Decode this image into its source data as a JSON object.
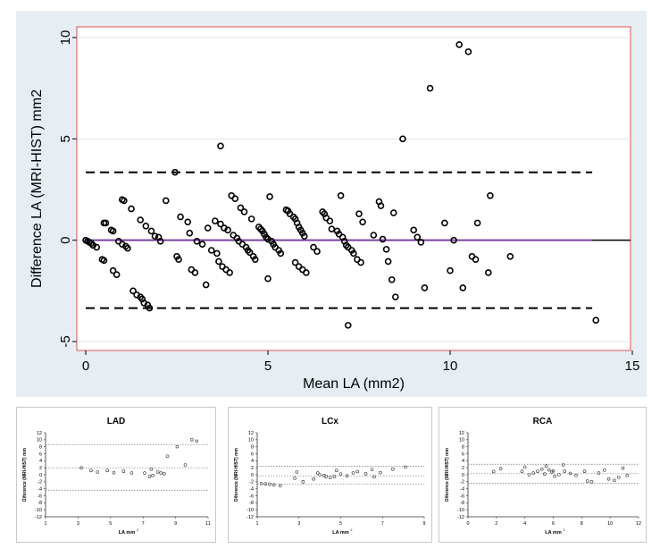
{
  "chart_data": [
    {
      "type": "scatter",
      "title": "",
      "xlabel": "Mean LA (mm2)",
      "ylabel": "Difference LA (MRI-HIST) mm2",
      "xlim": [
        0,
        15
      ],
      "ylim": [
        -5,
        10
      ],
      "xticks": [
        0,
        5,
        10,
        15
      ],
      "yticks": [
        -5,
        0,
        5,
        10
      ],
      "grid": true,
      "reference_lines": {
        "mean": 0,
        "upper_limit": 3.35,
        "lower_limit": -3.35
      },
      "colors": {
        "mean_line": "#7b3fa0",
        "limit_line": "#000000",
        "marker": "#000000",
        "frame": "#d9534f",
        "background": "#e7eef3"
      },
      "points": [
        [
          0,
          0
        ],
        [
          0.05,
          -0.05
        ],
        [
          0.1,
          -0.1
        ],
        [
          0.15,
          -0.15
        ],
        [
          0.2,
          -0.25
        ],
        [
          0.3,
          -0.35
        ],
        [
          0.5,
          0.85
        ],
        [
          0.55,
          0.85
        ],
        [
          0.45,
          -0.95
        ],
        [
          0.5,
          -1.0
        ],
        [
          0.7,
          0.5
        ],
        [
          0.75,
          0.45
        ],
        [
          0.75,
          -1.5
        ],
        [
          0.85,
          -1.7
        ],
        [
          0.9,
          -0.05
        ],
        [
          1.0,
          -0.2
        ],
        [
          1.0,
          2.0
        ],
        [
          1.05,
          1.95
        ],
        [
          1.1,
          -0.3
        ],
        [
          1.15,
          -0.4
        ],
        [
          1.25,
          1.55
        ],
        [
          1.3,
          -2.5
        ],
        [
          1.4,
          -2.7
        ],
        [
          1.5,
          -2.8
        ],
        [
          1.55,
          -2.9
        ],
        [
          1.6,
          -3.1
        ],
        [
          1.7,
          -3.2
        ],
        [
          1.75,
          -3.35
        ],
        [
          1.5,
          1.0
        ],
        [
          1.65,
          0.7
        ],
        [
          1.8,
          0.45
        ],
        [
          1.9,
          0.2
        ],
        [
          2.0,
          0.15
        ],
        [
          2.05,
          -0.05
        ],
        [
          2.2,
          1.95
        ],
        [
          2.45,
          3.35
        ],
        [
          2.5,
          -0.8
        ],
        [
          2.55,
          -0.95
        ],
        [
          2.6,
          1.15
        ],
        [
          2.8,
          0.9
        ],
        [
          2.85,
          0.35
        ],
        [
          2.9,
          -1.45
        ],
        [
          3.0,
          -1.6
        ],
        [
          3.05,
          -0.05
        ],
        [
          3.2,
          -0.2
        ],
        [
          3.3,
          -2.2
        ],
        [
          3.35,
          0.6
        ],
        [
          3.45,
          -0.5
        ],
        [
          3.55,
          0.95
        ],
        [
          3.6,
          -0.65
        ],
        [
          3.65,
          -1.05
        ],
        [
          3.7,
          0.8
        ],
        [
          3.75,
          -1.3
        ],
        [
          3.8,
          0.6
        ],
        [
          3.85,
          -1.45
        ],
        [
          3.9,
          0.5
        ],
        [
          3.95,
          -1.6
        ],
        [
          3.7,
          4.65
        ],
        [
          4.0,
          2.2
        ],
        [
          4.05,
          0.25
        ],
        [
          4.1,
          2.05
        ],
        [
          4.15,
          0.1
        ],
        [
          4.2,
          -0.05
        ],
        [
          4.25,
          1.6
        ],
        [
          4.3,
          -0.2
        ],
        [
          4.35,
          1.4
        ],
        [
          4.4,
          -0.35
        ],
        [
          4.45,
          -0.5
        ],
        [
          4.5,
          -0.6
        ],
        [
          4.55,
          1.05
        ],
        [
          4.6,
          -0.8
        ],
        [
          4.65,
          -0.95
        ],
        [
          4.75,
          0.65
        ],
        [
          4.8,
          0.55
        ],
        [
          4.85,
          0.45
        ],
        [
          4.9,
          0.3
        ],
        [
          4.95,
          0.15
        ],
        [
          5.0,
          0.05
        ],
        [
          5.05,
          2.15
        ],
        [
          5.1,
          -0.05
        ],
        [
          5.15,
          -0.2
        ],
        [
          5.2,
          -0.35
        ],
        [
          5.3,
          -0.5
        ],
        [
          5.35,
          -0.65
        ],
        [
          5.0,
          -1.9
        ],
        [
          5.5,
          1.5
        ],
        [
          5.55,
          1.45
        ],
        [
          5.6,
          1.3
        ],
        [
          5.7,
          1.15
        ],
        [
          5.75,
          1.05
        ],
        [
          5.8,
          0.85
        ],
        [
          5.85,
          0.65
        ],
        [
          5.9,
          0.5
        ],
        [
          5.95,
          0.35
        ],
        [
          6.0,
          0.2
        ],
        [
          5.75,
          -1.1
        ],
        [
          5.85,
          -1.3
        ],
        [
          5.95,
          -1.45
        ],
        [
          6.05,
          -1.6
        ],
        [
          6.25,
          -0.35
        ],
        [
          6.35,
          -0.55
        ],
        [
          6.5,
          1.4
        ],
        [
          6.55,
          1.3
        ],
        [
          6.6,
          1.1
        ],
        [
          6.7,
          0.95
        ],
        [
          6.75,
          0.55
        ],
        [
          6.9,
          0.45
        ],
        [
          6.95,
          0.3
        ],
        [
          7.0,
          2.2
        ],
        [
          7.05,
          0.15
        ],
        [
          7.1,
          -0.05
        ],
        [
          7.15,
          -0.25
        ],
        [
          7.2,
          -0.35
        ],
        [
          7.3,
          -0.5
        ],
        [
          7.35,
          -0.65
        ],
        [
          7.45,
          -0.95
        ],
        [
          7.55,
          -1.1
        ],
        [
          7.2,
          -4.2
        ],
        [
          7.5,
          1.3
        ],
        [
          7.6,
          0.9
        ],
        [
          7.9,
          0.25
        ],
        [
          8.05,
          1.9
        ],
        [
          8.1,
          1.7
        ],
        [
          8.15,
          0.05
        ],
        [
          8.25,
          -0.45
        ],
        [
          8.3,
          -1.05
        ],
        [
          8.4,
          -1.95
        ],
        [
          8.45,
          1.35
        ],
        [
          8.5,
          -2.8
        ],
        [
          8.7,
          5.0
        ],
        [
          9.0,
          0.5
        ],
        [
          9.1,
          0.15
        ],
        [
          9.2,
          -0.1
        ],
        [
          9.3,
          -2.35
        ],
        [
          9.45,
          7.5
        ],
        [
          9.85,
          0.85
        ],
        [
          10.0,
          -1.5
        ],
        [
          10.1,
          0.0
        ],
        [
          10.25,
          9.65
        ],
        [
          10.35,
          -2.35
        ],
        [
          10.5,
          9.3
        ],
        [
          10.6,
          -0.8
        ],
        [
          10.7,
          -0.95
        ],
        [
          10.75,
          0.85
        ],
        [
          11.1,
          2.2
        ],
        [
          11.05,
          -1.6
        ],
        [
          11.65,
          -0.8
        ],
        [
          14.0,
          -3.95
        ]
      ]
    },
    {
      "type": "scatter",
      "title": "LAD",
      "xlabel": "LA mm",
      "ylabel": "Diference (MRI-HIST) mm",
      "xlim": [
        1,
        11
      ],
      "ylim": [
        -12,
        12
      ],
      "xticks": [
        1,
        3,
        5,
        7,
        9,
        11
      ],
      "yticks": [
        -12,
        -10,
        -8,
        -6,
        -4,
        -2,
        0,
        2,
        4,
        6,
        8,
        10,
        12
      ],
      "reference_lines": {
        "mean": 2.0,
        "upper_limit": 8.6,
        "lower_limit": -4.4
      },
      "points": [
        [
          3.2,
          2.0
        ],
        [
          3.8,
          1.2
        ],
        [
          4.2,
          0.8
        ],
        [
          4.8,
          1.2
        ],
        [
          5.2,
          0.6
        ],
        [
          5.8,
          1.0
        ],
        [
          6.3,
          0.5
        ],
        [
          7.1,
          0.5
        ],
        [
          7.4,
          -0.5
        ],
        [
          7.5,
          1.6
        ],
        [
          7.6,
          -0.2
        ],
        [
          7.9,
          0.8
        ],
        [
          8.1,
          0.5
        ],
        [
          8.3,
          0.3
        ],
        [
          8.5,
          5.3
        ],
        [
          9.1,
          8.0
        ],
        [
          9.6,
          2.8
        ],
        [
          10.0,
          10.0
        ],
        [
          10.3,
          9.6
        ]
      ]
    },
    {
      "type": "scatter",
      "title": "LCx",
      "xlabel": "LA mm",
      "ylabel": "Diference (MRI-HIST) mm",
      "xlim": [
        1,
        9
      ],
      "ylim": [
        -12,
        12
      ],
      "xticks": [
        1,
        3,
        5,
        7,
        9
      ],
      "yticks": [
        -12,
        -10,
        -8,
        -6,
        -4,
        -2,
        0,
        2,
        4,
        6,
        8,
        10,
        12
      ],
      "reference_lines": {
        "mean": -0.3,
        "upper_limit": 2.4,
        "lower_limit": -2.7
      },
      "points": [
        [
          1.2,
          -2.5
        ],
        [
          1.4,
          -2.6
        ],
        [
          1.6,
          -2.7
        ],
        [
          1.8,
          -2.9
        ],
        [
          2.1,
          -3.1
        ],
        [
          2.8,
          -1.0
        ],
        [
          2.9,
          0.8
        ],
        [
          3.2,
          -2.0
        ],
        [
          3.7,
          -1.2
        ],
        [
          3.9,
          0.5
        ],
        [
          4.0,
          0.0
        ],
        [
          4.2,
          -0.2
        ],
        [
          4.3,
          -0.5
        ],
        [
          4.5,
          -0.8
        ],
        [
          4.7,
          -0.5
        ],
        [
          4.8,
          1.2
        ],
        [
          5.0,
          0.2
        ],
        [
          5.3,
          -0.3
        ],
        [
          5.6,
          0.5
        ],
        [
          5.8,
          0.9
        ],
        [
          6.2,
          0.3
        ],
        [
          6.5,
          1.5
        ],
        [
          6.6,
          -0.6
        ],
        [
          6.9,
          0.6
        ],
        [
          7.5,
          1.6
        ],
        [
          8.1,
          2.2
        ]
      ]
    },
    {
      "type": "scatter",
      "title": "RCA",
      "xlabel": "LA mm",
      "ylabel": "Diference (MRI-HIST) mm",
      "xlim": [
        0,
        12
      ],
      "ylim": [
        -12,
        12
      ],
      "xticks": [
        0,
        2,
        4,
        6,
        8,
        10,
        12
      ],
      "yticks": [
        -12,
        -10,
        -8,
        -6,
        -4,
        -2,
        0,
        2,
        4,
        6,
        8,
        10,
        12
      ],
      "reference_lines": {
        "mean": 0.3,
        "upper_limit": 3.0,
        "lower_limit": -2.4
      },
      "points": [
        [
          1.8,
          0.9
        ],
        [
          2.3,
          1.8
        ],
        [
          3.8,
          1.0
        ],
        [
          4.0,
          2.2
        ],
        [
          4.3,
          0.0
        ],
        [
          4.6,
          0.5
        ],
        [
          4.9,
          1.0
        ],
        [
          5.2,
          1.6
        ],
        [
          5.4,
          0.2
        ],
        [
          5.5,
          2.5
        ],
        [
          5.7,
          1.4
        ],
        [
          5.9,
          0.8
        ],
        [
          6.0,
          1.1
        ],
        [
          6.1,
          -0.4
        ],
        [
          6.4,
          0.0
        ],
        [
          6.7,
          2.8
        ],
        [
          6.8,
          1.0
        ],
        [
          7.2,
          0.4
        ],
        [
          7.6,
          -0.2
        ],
        [
          8.2,
          1.0
        ],
        [
          8.4,
          -1.8
        ],
        [
          8.7,
          -2.0
        ],
        [
          9.2,
          0.5
        ],
        [
          9.6,
          1.3
        ],
        [
          9.9,
          -1.2
        ],
        [
          10.3,
          -1.6
        ],
        [
          10.6,
          -0.7
        ],
        [
          10.9,
          1.9
        ],
        [
          11.2,
          -0.2
        ]
      ]
    }
  ]
}
